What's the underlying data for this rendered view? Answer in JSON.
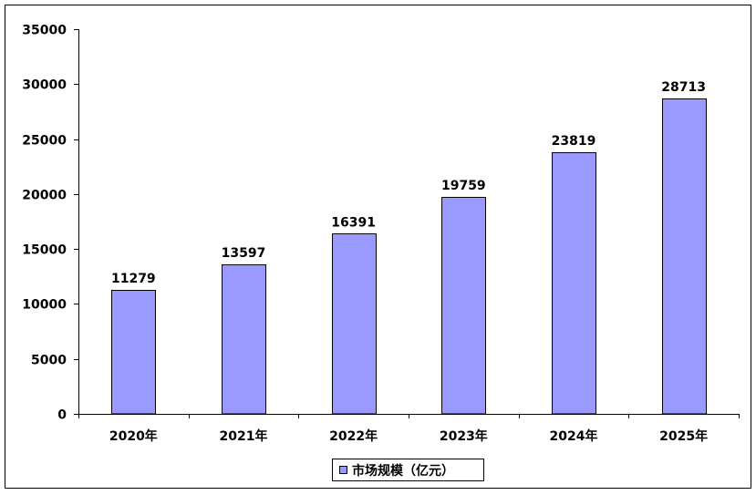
{
  "chart_data": {
    "type": "bar",
    "categories": [
      "2020年",
      "2021年",
      "2022年",
      "2023年",
      "2024年",
      "2025年"
    ],
    "series": [
      {
        "name": "市场规模（亿元）",
        "values": [
          11279,
          13597,
          16391,
          19759,
          23819,
          28713
        ]
      }
    ],
    "ylim": [
      0,
      35000
    ],
    "yticks": [
      "0",
      "5000",
      "10000",
      "15000",
      "20000",
      "25000",
      "30000",
      "35000"
    ],
    "grid": false,
    "legend": "bottom",
    "colors": {
      "bar": "#9999ff",
      "bar_stroke": "#000000",
      "axis": "#000000"
    }
  }
}
